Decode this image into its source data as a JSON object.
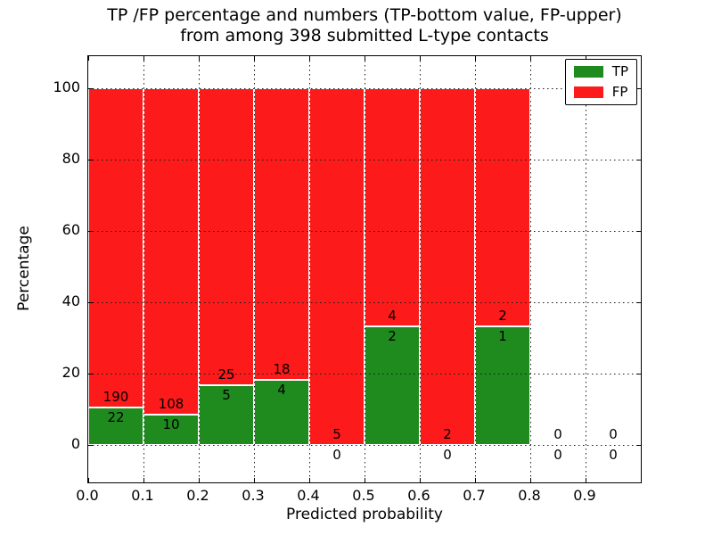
{
  "figure": {
    "title_line1": "TP /FP percentage and numbers (TP-bottom value, FP-upper)",
    "title_line2": "from among 398 submitted L-type contacts",
    "xlabel": "Predicted probability",
    "ylabel": "Percentage"
  },
  "legend": {
    "position": "upper right",
    "items": [
      {
        "label": "TP",
        "color": "#1f8b1f"
      },
      {
        "label": "FP",
        "color": "#fc1a1a"
      }
    ]
  },
  "chart_data": {
    "type": "bar",
    "subtype": "stacked_percentage_histogram",
    "title": "TP /FP percentage and numbers (TP-bottom value, FP-upper) from among 398 submitted L-type contacts",
    "xlabel": "Predicted probability",
    "ylabel": "Percentage",
    "total_submitted": 398,
    "bin_width": 0.1,
    "bin_starts": [
      0.0,
      0.1,
      0.2,
      0.3,
      0.4,
      0.5,
      0.6,
      0.7,
      0.8,
      0.9
    ],
    "series": [
      {
        "name": "TP",
        "color": "#1f8b1f",
        "counts": [
          22,
          10,
          5,
          4,
          0,
          2,
          0,
          1,
          0,
          0
        ],
        "percent": [
          10.4,
          8.5,
          16.7,
          18.2,
          0.0,
          33.3,
          0.0,
          33.3,
          0.0,
          0.0
        ]
      },
      {
        "name": "FP",
        "color": "#fc1a1a",
        "counts": [
          190,
          108,
          25,
          18,
          5,
          4,
          2,
          2,
          0,
          0
        ],
        "percent": [
          89.6,
          91.5,
          83.3,
          81.8,
          100.0,
          66.7,
          100.0,
          66.7,
          0.0,
          0.0
        ]
      }
    ],
    "xlim": [
      0.0,
      1.0
    ],
    "ylim": [
      -10.5,
      109.0
    ],
    "x_ticks": {
      "values": [
        0.0,
        0.1,
        0.2,
        0.3,
        0.4,
        0.5,
        0.6,
        0.7,
        0.8,
        0.9
      ],
      "labels": [
        "0.0",
        "0.1",
        "0.2",
        "0.3",
        "0.4",
        "0.5",
        "0.6",
        "0.7",
        "0.8",
        "0.9"
      ]
    },
    "y_ticks": {
      "values": [
        0,
        20,
        40,
        60,
        80,
        100
      ],
      "labels": [
        "0",
        "20",
        "40",
        "60",
        "80",
        "100"
      ]
    },
    "grid": {
      "visible": true,
      "style": "dotted",
      "above_bars": true
    },
    "legend_position": "upper right"
  }
}
